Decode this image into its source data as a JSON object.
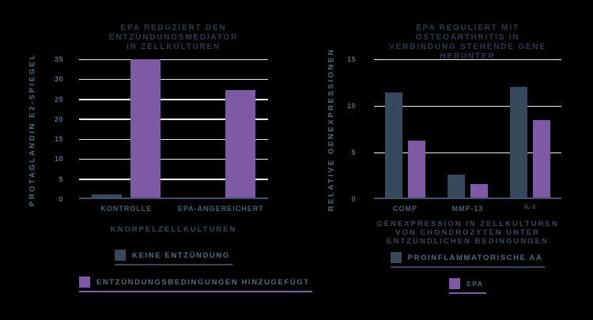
{
  "colors": {
    "background": "#000000",
    "bar_dark": "#36495c",
    "bar_purple": "#7d59a6",
    "title_text": "#2b3c4f",
    "axis_text": "#4e6e7d",
    "caption_text": "#344a5b",
    "gridline": "#e9edef",
    "axis_line": "#3d5266"
  },
  "chart_data": [
    {
      "type": "bar",
      "title": "EPA REDUZIERT DEN ENTZÜNDUNGSMEDIATOR\nIN ZELLKULTUREN",
      "ylabel": "PROTAGLANDIN E2-SPIEGEL",
      "xlabel": "KNORPELZELLKULTUREN",
      "categories": [
        "KONTROLLE",
        "EPA-ANGEREICHERT"
      ],
      "series": [
        {
          "name": "KEINE ENTZÜNDUNG",
          "color": "#36495c",
          "values": [
            1.2,
            0.4
          ]
        },
        {
          "name": "ENTZÜNDUNGSBEDINGUNGEN HINZUGEFÜGT",
          "color": "#7d59a6",
          "values": [
            35,
            27.3
          ]
        }
      ],
      "ylim": [
        0,
        35
      ],
      "yticks": [
        0,
        5,
        10,
        15,
        20,
        25,
        30,
        35
      ],
      "grid": true,
      "legend_position": "below"
    },
    {
      "type": "bar",
      "title": "EPA REGULIERT MIT OSTEOARTHRITIS IN\nVERBINDUNG STEHENDE GENE HERUNTER",
      "ylabel": "RELATIVE GENEXPRESSIONEN",
      "xlabel": "GENEXPRESSION IN ZELLKULTUREN\nVON CHONDROZYTEN UNTER\nENTZÜNDLICHEN BEDINGUNGEN",
      "categories": [
        "COMP",
        "MMP-13",
        "IL-1"
      ],
      "series": [
        {
          "name": "PROINFLAMMATORISCHE AA",
          "color": "#36495c",
          "values": [
            11.4,
            2.6,
            12
          ]
        },
        {
          "name": "EPA",
          "color": "#7d59a6",
          "values": [
            6.3,
            1.6,
            8.5
          ]
        }
      ],
      "ylim": [
        0,
        15
      ],
      "yticks": [
        0,
        5,
        10,
        15
      ],
      "grid": true,
      "legend_position": "below"
    }
  ]
}
